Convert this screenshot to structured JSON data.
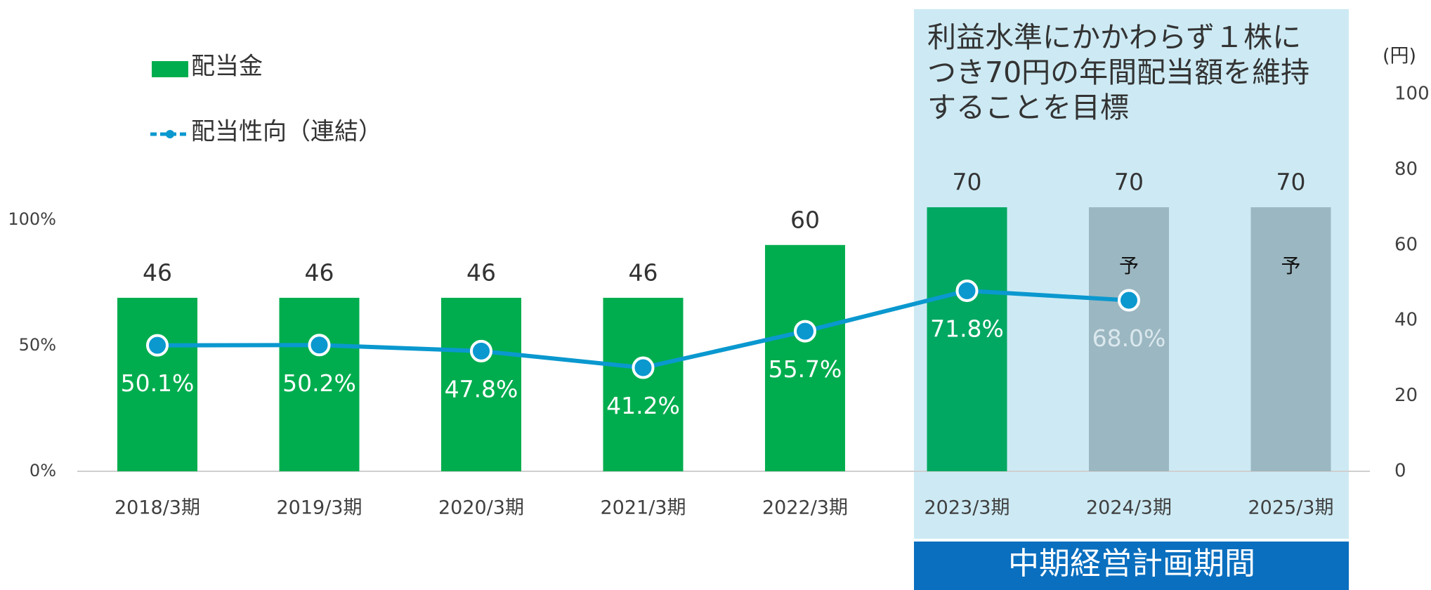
{
  "chart_data": {
    "type": "bar",
    "categories": [
      "2018/3期",
      "2019/3期",
      "2020/3期",
      "2021/3期",
      "2022/3期",
      "2023/3期",
      "2024/3期",
      "2025/3期"
    ],
    "series": [
      {
        "name": "配当金",
        "type": "bar",
        "axis": "y2",
        "colors": [
          "#00ad4e",
          "#00ad4e",
          "#00ad4e",
          "#00ad4e",
          "#00ad4e",
          "#00a862",
          "#9bb7c1",
          "#9bb7c1"
        ],
        "values": [
          46,
          46,
          46,
          46,
          60,
          70,
          70,
          70
        ],
        "notes": [
          null,
          null,
          null,
          null,
          null,
          null,
          "予",
          "予"
        ]
      },
      {
        "name": "配当性向（連結）",
        "type": "line",
        "color": "#0a98cf",
        "values": [
          50.1,
          50.2,
          47.8,
          41.2,
          55.7,
          71.8,
          68.0,
          null
        ],
        "value_labels": [
          "50.1%",
          "50.2%",
          "47.8%",
          "41.2%",
          "55.7%",
          "71.8%",
          "68.0%",
          null
        ]
      }
    ],
    "ylim": [
      0,
      150
    ],
    "yticks": [
      {
        "value": 0,
        "label": "0%"
      },
      {
        "value": 50,
        "label": "50%"
      },
      {
        "value": 100,
        "label": "100%"
      }
    ],
    "y2lim": [
      0,
      100
    ],
    "y2ticks": [
      0,
      20,
      40,
      60,
      80,
      100
    ],
    "y2label": "(円)",
    "highlight": {
      "text": [
        "利益水準にかかわらず１株に",
        "つき70円の年間配当額を維持",
        "することを目標"
      ],
      "period": "中期経営計画期間"
    }
  }
}
